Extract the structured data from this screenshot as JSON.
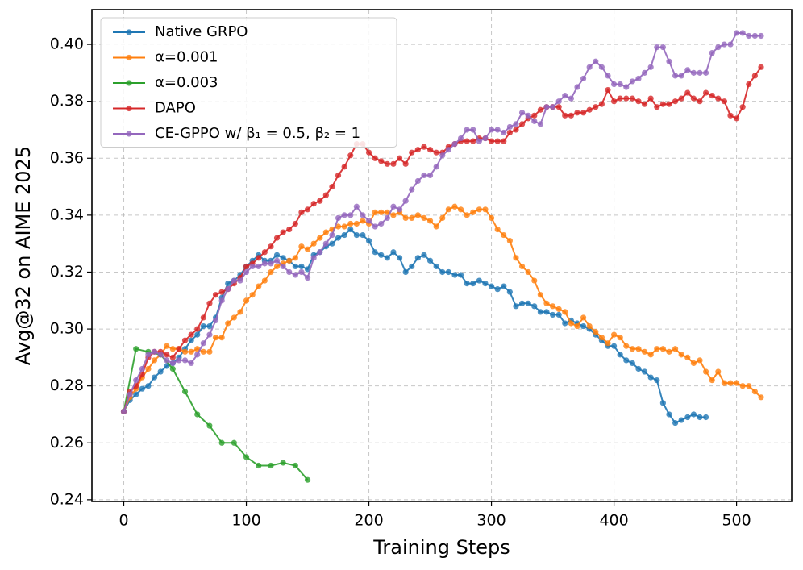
{
  "chart_data": {
    "type": "line",
    "x_label": "Training Steps",
    "y_label": "Avg@32 on AIME 2025",
    "xlim": [
      -26,
      545
    ],
    "ylim": [
      0.2394,
      0.4122
    ],
    "xticks": [
      0,
      100,
      200,
      300,
      400,
      500
    ],
    "yticks": [
      0.24,
      0.26,
      0.28,
      {
        "value": 0.3,
        "label": "0.30"
      },
      0.32,
      0.34,
      0.36,
      0.38,
      {
        "value": 0.4,
        "label": "0.40"
      }
    ],
    "grid": true,
    "legend": "upper left",
    "series": [
      {
        "name": "Native GRPO",
        "color": "#1f77b4",
        "x": [
          0,
          5,
          10,
          15,
          20,
          25,
          30,
          35,
          40,
          45,
          50,
          55,
          60,
          65,
          70,
          75,
          80,
          85,
          90,
          95,
          100,
          105,
          110,
          115,
          120,
          125,
          130,
          135,
          140,
          145,
          150,
          155,
          160,
          165,
          170,
          175,
          180,
          185,
          190,
          195,
          200,
          205,
          210,
          215,
          220,
          225,
          230,
          235,
          240,
          245,
          250,
          255,
          260,
          265,
          270,
          275,
          280,
          285,
          290,
          295,
          300,
          305,
          310,
          315,
          320,
          325,
          330,
          335,
          340,
          345,
          350,
          355,
          360,
          365,
          370,
          375,
          380,
          385,
          390,
          395,
          400,
          405,
          410,
          415,
          420,
          425,
          430,
          435,
          440,
          445,
          450,
          455,
          460,
          465,
          470,
          475
        ],
        "values": [
          0.271,
          0.275,
          0.277,
          0.279,
          0.28,
          0.283,
          0.285,
          0.287,
          0.288,
          0.29,
          0.293,
          0.296,
          0.298,
          0.301,
          0.301,
          0.304,
          0.311,
          0.316,
          0.317,
          0.319,
          0.322,
          0.324,
          0.326,
          0.324,
          0.324,
          0.326,
          0.325,
          0.324,
          0.322,
          0.322,
          0.321,
          0.326,
          0.327,
          0.329,
          0.33,
          0.332,
          0.333,
          0.335,
          0.333,
          0.333,
          0.331,
          0.327,
          0.326,
          0.325,
          0.327,
          0.325,
          0.32,
          0.322,
          0.325,
          0.326,
          0.324,
          0.322,
          0.32,
          0.32,
          0.319,
          0.319,
          0.316,
          0.316,
          0.317,
          0.316,
          0.315,
          0.314,
          0.315,
          0.313,
          0.308,
          0.309,
          0.309,
          0.308,
          0.306,
          0.306,
          0.305,
          0.305,
          0.302,
          0.303,
          0.302,
          0.301,
          0.3,
          0.298,
          0.296,
          0.294,
          0.294,
          0.291,
          0.289,
          0.288,
          0.286,
          0.285,
          0.283,
          0.282,
          0.274,
          0.27,
          0.267,
          0.268,
          0.269,
          0.27,
          0.269,
          0.269
        ]
      },
      {
        "name": "α=0.001",
        "color": "#ff7f0e",
        "x": [
          0,
          5,
          10,
          15,
          20,
          25,
          30,
          35,
          40,
          45,
          50,
          55,
          60,
          65,
          70,
          75,
          80,
          85,
          90,
          95,
          100,
          105,
          110,
          115,
          120,
          125,
          130,
          135,
          140,
          145,
          150,
          155,
          160,
          165,
          170,
          175,
          180,
          185,
          190,
          195,
          200,
          205,
          210,
          215,
          220,
          225,
          230,
          235,
          240,
          245,
          250,
          255,
          260,
          265,
          270,
          275,
          280,
          285,
          290,
          295,
          300,
          305,
          310,
          315,
          320,
          325,
          330,
          335,
          340,
          345,
          350,
          355,
          360,
          365,
          370,
          375,
          380,
          385,
          390,
          395,
          400,
          405,
          410,
          415,
          420,
          425,
          430,
          435,
          440,
          445,
          450,
          455,
          460,
          465,
          470,
          475,
          480,
          485,
          490,
          495,
          500,
          505,
          510,
          515,
          520
        ],
        "values": [
          0.271,
          0.276,
          0.279,
          0.283,
          0.286,
          0.289,
          0.291,
          0.294,
          0.293,
          0.293,
          0.292,
          0.292,
          0.293,
          0.292,
          0.292,
          0.297,
          0.297,
          0.302,
          0.304,
          0.306,
          0.31,
          0.312,
          0.315,
          0.317,
          0.32,
          0.322,
          0.323,
          0.324,
          0.325,
          0.329,
          0.328,
          0.33,
          0.332,
          0.334,
          0.335,
          0.336,
          0.336,
          0.337,
          0.337,
          0.338,
          0.337,
          0.341,
          0.341,
          0.341,
          0.34,
          0.341,
          0.339,
          0.339,
          0.34,
          0.339,
          0.338,
          0.336,
          0.339,
          0.342,
          0.343,
          0.342,
          0.34,
          0.341,
          0.342,
          0.342,
          0.339,
          0.335,
          0.333,
          0.331,
          0.325,
          0.322,
          0.32,
          0.317,
          0.312,
          0.309,
          0.308,
          0.307,
          0.306,
          0.302,
          0.301,
          0.304,
          0.301,
          0.299,
          0.297,
          0.295,
          0.298,
          0.297,
          0.294,
          0.293,
          0.293,
          0.292,
          0.291,
          0.293,
          0.293,
          0.292,
          0.293,
          0.291,
          0.29,
          0.288,
          0.289,
          0.285,
          0.282,
          0.285,
          0.281,
          0.281,
          0.281,
          0.28,
          0.28,
          0.278,
          0.276
        ]
      },
      {
        "name": "α=0.003",
        "color": "#2ca02c",
        "x": [
          0,
          10,
          20,
          30,
          40,
          50,
          60,
          70,
          80,
          90,
          100,
          110,
          120,
          130,
          140,
          150
        ],
        "values": [
          0.271,
          0.293,
          0.292,
          0.291,
          0.286,
          0.278,
          0.27,
          0.266,
          0.26,
          0.26,
          0.255,
          0.252,
          0.252,
          0.253,
          0.252,
          0.247
        ]
      },
      {
        "name": "DAPO",
        "color": "#d62728",
        "x": [
          0,
          5,
          10,
          15,
          20,
          25,
          30,
          35,
          40,
          45,
          50,
          55,
          60,
          65,
          70,
          75,
          80,
          85,
          90,
          95,
          100,
          105,
          110,
          115,
          120,
          125,
          130,
          135,
          140,
          145,
          150,
          155,
          160,
          165,
          170,
          175,
          180,
          185,
          190,
          195,
          200,
          205,
          210,
          215,
          220,
          225,
          230,
          235,
          240,
          245,
          250,
          255,
          260,
          265,
          270,
          275,
          280,
          285,
          290,
          295,
          300,
          305,
          310,
          315,
          320,
          325,
          330,
          335,
          340,
          345,
          350,
          355,
          360,
          365,
          370,
          375,
          380,
          385,
          390,
          395,
          400,
          405,
          410,
          415,
          420,
          425,
          430,
          435,
          440,
          445,
          450,
          455,
          460,
          465,
          470,
          475,
          480,
          485,
          490,
          495,
          500,
          505,
          510,
          515,
          520
        ],
        "values": [
          0.271,
          0.278,
          0.28,
          0.284,
          0.29,
          0.292,
          0.292,
          0.291,
          0.29,
          0.293,
          0.296,
          0.298,
          0.3,
          0.304,
          0.309,
          0.312,
          0.313,
          0.314,
          0.316,
          0.318,
          0.322,
          0.323,
          0.325,
          0.327,
          0.329,
          0.332,
          0.334,
          0.335,
          0.337,
          0.341,
          0.342,
          0.344,
          0.345,
          0.347,
          0.35,
          0.354,
          0.357,
          0.361,
          0.365,
          0.365,
          0.362,
          0.36,
          0.359,
          0.358,
          0.358,
          0.36,
          0.358,
          0.362,
          0.363,
          0.364,
          0.363,
          0.362,
          0.362,
          0.364,
          0.365,
          0.366,
          0.366,
          0.366,
          0.367,
          0.367,
          0.366,
          0.366,
          0.366,
          0.369,
          0.37,
          0.372,
          0.374,
          0.375,
          0.377,
          0.378,
          0.378,
          0.378,
          0.375,
          0.375,
          0.376,
          0.376,
          0.377,
          0.378,
          0.379,
          0.384,
          0.38,
          0.381,
          0.381,
          0.381,
          0.38,
          0.379,
          0.381,
          0.378,
          0.379,
          0.379,
          0.38,
          0.381,
          0.383,
          0.381,
          0.38,
          0.383,
          0.382,
          0.381,
          0.38,
          0.375,
          0.374,
          0.378,
          0.386,
          0.389,
          0.392
        ]
      },
      {
        "name": "CE-GPPO w/ β₁ = 0.5,  β₂ = 1",
        "color": "#9467bd",
        "x": [
          0,
          5,
          10,
          15,
          20,
          25,
          30,
          35,
          40,
          45,
          50,
          55,
          60,
          65,
          70,
          75,
          80,
          85,
          90,
          95,
          100,
          105,
          110,
          115,
          120,
          125,
          130,
          135,
          140,
          145,
          150,
          155,
          160,
          165,
          170,
          175,
          180,
          185,
          190,
          195,
          200,
          205,
          210,
          215,
          220,
          225,
          230,
          235,
          240,
          245,
          250,
          255,
          260,
          265,
          270,
          275,
          280,
          285,
          290,
          295,
          300,
          305,
          310,
          315,
          320,
          325,
          330,
          335,
          340,
          345,
          350,
          355,
          360,
          365,
          370,
          375,
          380,
          385,
          390,
          395,
          400,
          405,
          410,
          415,
          420,
          425,
          430,
          435,
          440,
          445,
          450,
          455,
          460,
          465,
          470,
          475,
          480,
          485,
          490,
          495,
          500,
          505,
          510,
          515,
          520
        ],
        "values": [
          0.271,
          0.277,
          0.282,
          0.286,
          0.291,
          0.292,
          0.291,
          0.289,
          0.288,
          0.289,
          0.289,
          0.288,
          0.291,
          0.295,
          0.298,
          0.303,
          0.31,
          0.314,
          0.317,
          0.317,
          0.32,
          0.322,
          0.322,
          0.323,
          0.323,
          0.324,
          0.322,
          0.32,
          0.319,
          0.32,
          0.318,
          0.325,
          0.327,
          0.33,
          0.333,
          0.339,
          0.34,
          0.34,
          0.343,
          0.34,
          0.338,
          0.336,
          0.337,
          0.339,
          0.343,
          0.342,
          0.345,
          0.349,
          0.352,
          0.354,
          0.354,
          0.357,
          0.361,
          0.363,
          0.365,
          0.367,
          0.37,
          0.37,
          0.366,
          0.367,
          0.37,
          0.37,
          0.369,
          0.371,
          0.372,
          0.376,
          0.375,
          0.373,
          0.372,
          0.378,
          0.378,
          0.38,
          0.382,
          0.381,
          0.385,
          0.388,
          0.392,
          0.394,
          0.392,
          0.389,
          0.386,
          0.386,
          0.385,
          0.387,
          0.388,
          0.39,
          0.392,
          0.399,
          0.399,
          0.394,
          0.389,
          0.389,
          0.391,
          0.39,
          0.39,
          0.39,
          0.397,
          0.399,
          0.4,
          0.4,
          0.404,
          0.404,
          0.403,
          0.403,
          0.403
        ]
      }
    ]
  }
}
